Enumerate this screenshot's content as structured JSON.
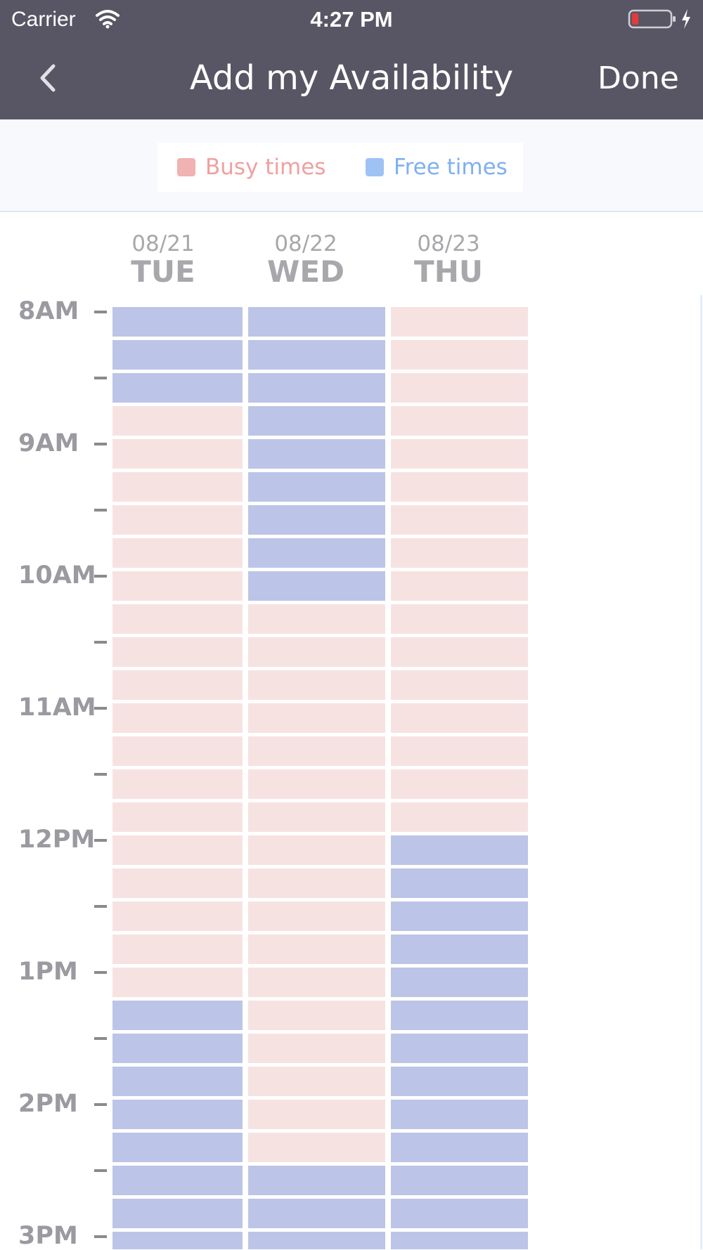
{
  "status_bar": {
    "carrier": "Carrier",
    "time": "4:27 PM"
  },
  "nav": {
    "title": "Add my Availability",
    "done_label": "Done",
    "back_icon": "chevron-left-icon"
  },
  "legend": {
    "busy_label": "Busy times",
    "free_label": "Free times",
    "busy_color": "#f0b2b2",
    "free_color": "#9fc2f5"
  },
  "colors": {
    "header_bg": "#585664",
    "busy_slot": "#f7e2e2",
    "free_slot": "#bcc5e7"
  },
  "days": [
    {
      "date": "08/21",
      "name": "TUE",
      "slots": [
        "free",
        "free",
        "free",
        "busy",
        "busy",
        "busy",
        "busy",
        "busy",
        "busy",
        "busy",
        "busy",
        "busy",
        "busy",
        "busy",
        "busy",
        "busy",
        "busy",
        "busy",
        "busy",
        "busy",
        "busy",
        "free",
        "free",
        "free",
        "free",
        "free",
        "free",
        "free",
        "free"
      ]
    },
    {
      "date": "08/22",
      "name": "WED",
      "slots": [
        "free",
        "free",
        "free",
        "free",
        "free",
        "free",
        "free",
        "free",
        "free",
        "busy",
        "busy",
        "busy",
        "busy",
        "busy",
        "busy",
        "busy",
        "busy",
        "busy",
        "busy",
        "busy",
        "busy",
        "busy",
        "busy",
        "busy",
        "busy",
        "busy",
        "free",
        "free",
        "free"
      ]
    },
    {
      "date": "08/23",
      "name": "THU",
      "slots": [
        "busy",
        "busy",
        "busy",
        "busy",
        "busy",
        "busy",
        "busy",
        "busy",
        "busy",
        "busy",
        "busy",
        "busy",
        "busy",
        "busy",
        "busy",
        "busy",
        "free",
        "free",
        "free",
        "free",
        "free",
        "free",
        "free",
        "free",
        "free",
        "free",
        "free",
        "free",
        "free"
      ]
    }
  ],
  "time_axis": {
    "hours": [
      "8AM",
      "9AM",
      "10AM",
      "11AM",
      "12PM",
      "1PM",
      "2PM",
      "3PM"
    ]
  }
}
